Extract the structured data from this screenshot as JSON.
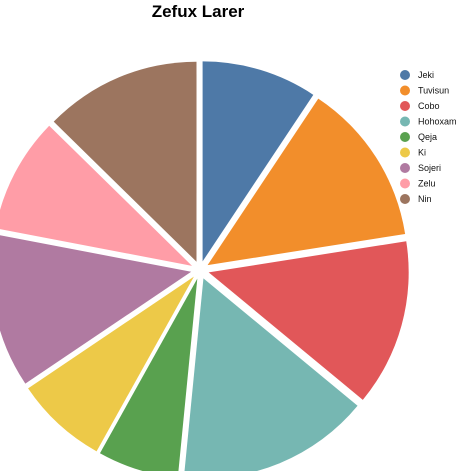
{
  "chart_data": {
    "type": "pie",
    "title": "Zefux Larer",
    "legend_position": "right",
    "slice_order": "clockwise-from-top",
    "exploded": true,
    "slices": [
      {
        "label": "Jeki",
        "value": 9.0,
        "color": "#4e79a7"
      },
      {
        "label": "Tuvisun",
        "value": 12.7,
        "color": "#f28e2b"
      },
      {
        "label": "Cobo",
        "value": 13.0,
        "color": "#e15759"
      },
      {
        "label": "Hohoxam",
        "value": 15.0,
        "color": "#76b7b2"
      },
      {
        "label": "Qeja",
        "value": 6.3,
        "color": "#59a14f"
      },
      {
        "label": "Ki",
        "value": 7.2,
        "color": "#edc948"
      },
      {
        "label": "Sojeri",
        "value": 12.0,
        "color": "#b07aa1"
      },
      {
        "label": "Zelu",
        "value": 9.0,
        "color": "#ff9da7"
      },
      {
        "label": "Nin",
        "value": 12.2,
        "color": "#9c755f"
      }
    ]
  }
}
